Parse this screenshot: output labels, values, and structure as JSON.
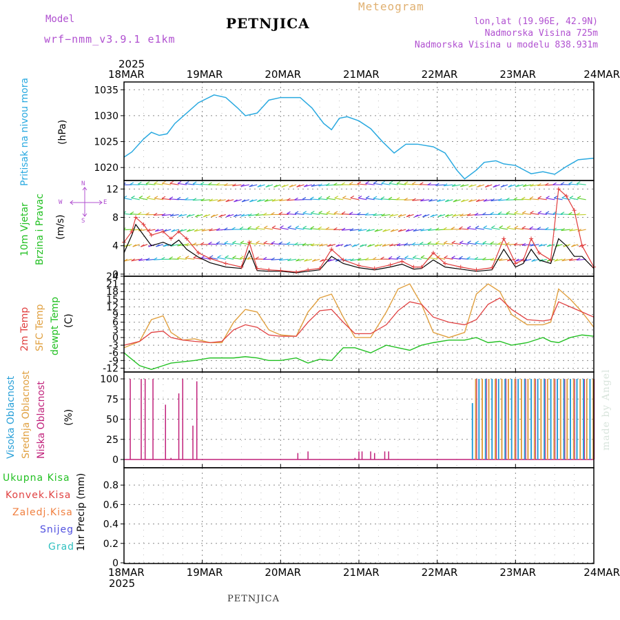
{
  "header": {
    "model_label": "Model",
    "model_name": "wrf−nmm_v3.9.1  e1km",
    "station": "PETNJICA",
    "meteogram": "Meteogram",
    "lonlat": "lon,lat (19.96E, 42.9N)",
    "altitude": "Nadmorska Visina 725m",
    "model_altitude": "Nadmorska Visina u modelu 838.931m",
    "footer_station": "PETNJICA",
    "year": "2025",
    "credit": "made by Angel"
  },
  "dates": [
    "18MAR",
    "19MAR",
    "20MAR",
    "21MAR",
    "22MAR",
    "23MAR",
    "24MAR"
  ],
  "colors": {
    "pressure": "#29a9e0",
    "wind_max": "#e03c3c",
    "wind_mean": "#000000",
    "t2m": "#e04040",
    "tsfc": "#e0a040",
    "dewpt": "#22c022",
    "cloud_high": "#29a0d8",
    "cloud_mid": "#e0a040",
    "cloud_low": "#c0207a",
    "grid": "#888888"
  },
  "panel_labels": {
    "pressure": {
      "name": "Pritisak na nivou mora",
      "unit": "(hPa)"
    },
    "wind": {
      "name1": "10m Vjetar",
      "name2": "Brzina i Pravac",
      "unit": "(m/s)",
      "compass_n": "N",
      "compass_s": "S",
      "compass_w": "W",
      "compass_e": "E"
    },
    "temp": {
      "t2m": "2m Temp",
      "sfc": "SFC Temp",
      "dew": "dewpt Temp",
      "unit": "(C)"
    },
    "cloud": {
      "high": "Visoka Oblacnost",
      "mid": "Srednja Oblacnost",
      "low": "Niska Oblacnost",
      "unit": "(%)"
    },
    "precip": {
      "total": "Ukupna Kisa",
      "conv": "Konvek.Kisa",
      "ice": "Zaledj.Kisa",
      "snow": "Snijeg",
      "hail": "Grad",
      "unit": "1hr Precip (mm)"
    }
  },
  "chart_data": [
    {
      "type": "line",
      "ylabel": "(hPa)",
      "yticks": [
        1020,
        1025,
        1030,
        1035
      ],
      "ylim": [
        1017.5,
        1036.5
      ],
      "x_days": [
        0,
        0.1,
        0.25,
        0.35,
        0.45,
        0.55,
        0.65,
        0.8,
        0.95,
        1.15,
        1.3,
        1.45,
        1.55,
        1.7,
        1.85,
        2.0,
        2.15,
        2.25,
        2.4,
        2.55,
        2.65,
        2.75,
        2.85,
        3.0,
        3.15,
        3.3,
        3.45,
        3.6,
        3.75,
        3.95,
        4.1,
        4.25,
        4.35,
        4.5,
        4.6,
        4.75,
        4.85,
        5.0,
        5.2,
        5.35,
        5.5,
        5.65,
        5.8,
        6.0
      ],
      "series": [
        {
          "values": [
            1022,
            1023,
            1025.5,
            1026.8,
            1026.2,
            1026.5,
            1028.5,
            1030.5,
            1032.5,
            1034,
            1033.5,
            1031.5,
            1030,
            1030.5,
            1033,
            1033.5,
            1033.5,
            1033.5,
            1031.5,
            1028.5,
            1027.3,
            1029.5,
            1029.8,
            1029,
            1027.5,
            1025,
            1022.8,
            1024.5,
            1024.5,
            1024,
            1022.8,
            1019.5,
            1017.8,
            1019.5,
            1021,
            1021.3,
            1020.7,
            1020.4,
            1018.8,
            1019.2,
            1018.7,
            1020.2,
            1021.5,
            1021.8
          ]
        }
      ]
    },
    {
      "type": "line",
      "ylabel": "(m/s)",
      "yticks": [
        0,
        4,
        8,
        12
      ],
      "ylim": [
        -0.3,
        13.2
      ],
      "x_days": [
        0,
        0.1,
        0.15,
        0.25,
        0.35,
        0.5,
        0.6,
        0.7,
        0.8,
        0.95,
        1.1,
        1.3,
        1.5,
        1.6,
        1.7,
        1.85,
        2.0,
        2.2,
        2.35,
        2.5,
        2.65,
        2.8,
        3.0,
        3.2,
        3.4,
        3.55,
        3.7,
        3.8,
        3.95,
        4.1,
        4.3,
        4.5,
        4.7,
        4.85,
        5.0,
        5.1,
        5.2,
        5.3,
        5.45,
        5.55,
        5.65,
        5.75,
        5.85,
        6.0
      ],
      "series": [
        {
          "values": [
            4.5,
            6,
            8,
            7,
            5.5,
            6,
            5,
            6,
            5,
            3,
            2.2,
            1.5,
            1,
            4.5,
            0.8,
            0.6,
            0.5,
            0.3,
            0.6,
            0.8,
            3.5,
            2,
            1.2,
            0.8,
            1.3,
            1.8,
            1,
            1,
            3,
            1.5,
            1,
            0.6,
            0.9,
            5,
            1.5,
            2,
            5,
            3,
            2,
            12,
            11,
            9,
            4,
            1
          ]
        },
        {
          "values": [
            3,
            5.5,
            7,
            5.5,
            4,
            4.5,
            4,
            4.8,
            3.5,
            2.4,
            1.6,
            1,
            0.8,
            3.3,
            0.5,
            0.4,
            0.4,
            0.2,
            0.4,
            0.6,
            2.5,
            1.5,
            0.9,
            0.6,
            1,
            1.4,
            0.7,
            0.8,
            2,
            1,
            0.7,
            0.4,
            0.6,
            3.5,
            1,
            1.5,
            3.5,
            2,
            1.5,
            5,
            4,
            2.5,
            2.5,
            0.8
          ]
        }
      ]
    },
    {
      "type": "line",
      "ylabel": "(C)",
      "yticks": [
        -12,
        -9,
        -6,
        -3,
        0,
        3,
        6,
        9,
        12,
        15,
        18,
        21,
        24
      ],
      "ylim": [
        -13.5,
        24
      ],
      "x_days": [
        0,
        0.2,
        0.35,
        0.5,
        0.6,
        0.75,
        0.9,
        1.1,
        1.25,
        1.4,
        1.55,
        1.7,
        1.85,
        2.0,
        2.2,
        2.35,
        2.5,
        2.65,
        2.8,
        2.95,
        3.15,
        3.35,
        3.5,
        3.65,
        3.8,
        3.95,
        4.15,
        4.35,
        4.5,
        4.65,
        4.8,
        4.95,
        5.15,
        5.35,
        5.45,
        5.55,
        5.7,
        5.85,
        6.0
      ],
      "series": [
        {
          "values": [
            -3,
            -1.5,
            2,
            2.5,
            0,
            -1,
            -1.5,
            -2,
            -1.5,
            3,
            5,
            4,
            1,
            0.5,
            0.5,
            6,
            10.5,
            11,
            6,
            1.5,
            1.5,
            5,
            10.5,
            14,
            13,
            8,
            6,
            5,
            7,
            13,
            15.5,
            11,
            7,
            6.5,
            7,
            14,
            12,
            10,
            8
          ]
        },
        {
          "values": [
            -4,
            -1.5,
            7,
            8.5,
            2,
            -1,
            -0.5,
            -2,
            -2,
            6,
            11,
            10,
            3,
            1,
            0.5,
            10,
            15.5,
            17,
            8,
            0,
            0,
            10,
            19,
            21,
            13,
            2,
            0,
            2,
            17,
            21,
            18,
            9,
            5,
            5,
            6,
            19,
            15,
            10,
            4
          ]
        },
        {
          "values": [
            -6,
            -11,
            -12.5,
            -11,
            -10,
            -9.5,
            -9,
            -8,
            -8,
            -8,
            -7.5,
            -8,
            -9,
            -9,
            -8,
            -10,
            -8.5,
            -9,
            -4,
            -4,
            -6,
            -3,
            -4,
            -5,
            -3,
            -2,
            -1,
            -1,
            0,
            -2,
            -1.5,
            -3,
            -2,
            0,
            -1.5,
            -2,
            0,
            1,
            0.5
          ]
        }
      ]
    },
    {
      "type": "bar",
      "ylabel": "(%)",
      "yticks": [
        0,
        25,
        50,
        75,
        100
      ],
      "ylim": [
        0,
        100
      ],
      "low_bars": [
        [
          0.08,
          100
        ],
        [
          0.22,
          100
        ],
        [
          0.27,
          100
        ],
        [
          0.37,
          100
        ],
        [
          0.53,
          68
        ],
        [
          0.6,
          2
        ],
        [
          0.7,
          82
        ],
        [
          0.75,
          100
        ],
        [
          0.88,
          42
        ],
        [
          0.93,
          97
        ],
        [
          2.22,
          8
        ],
        [
          2.35,
          10
        ],
        [
          2.95,
          2
        ],
        [
          3.0,
          10
        ],
        [
          3.04,
          10
        ],
        [
          3.15,
          10
        ],
        [
          3.2,
          8
        ],
        [
          3.33,
          10
        ],
        [
          3.38,
          10
        ]
      ],
      "high_mid_block": {
        "start_day": 4.45,
        "end_day": 6.0,
        "value": 100,
        "step_day": 0.0417,
        "first_value": 70
      }
    },
    {
      "type": "bar",
      "ylabel": "1hr Precip (mm)",
      "yticks": [
        0,
        0.2,
        0.4,
        0.6,
        0.8
      ],
      "ylim": [
        0,
        0.95
      ],
      "values": []
    }
  ]
}
